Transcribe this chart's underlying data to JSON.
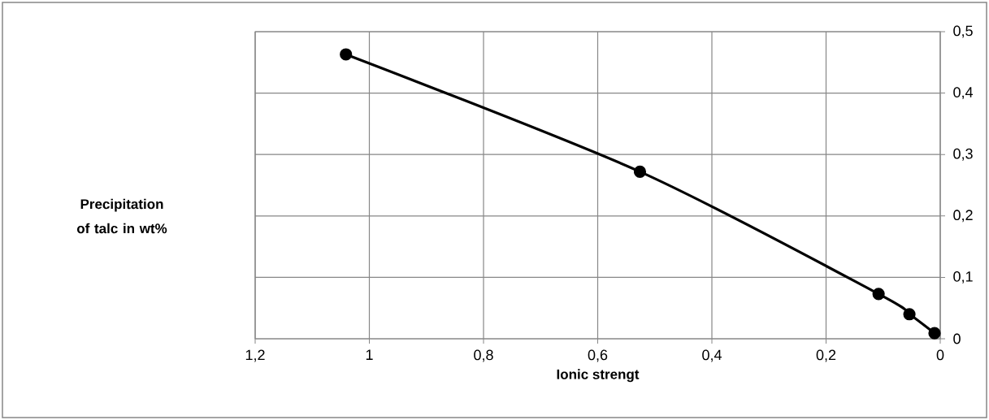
{
  "chart_data": {
    "type": "line",
    "xlabel": "Ionic strengt",
    "annotations": [
      "Precipitation of talc in wt%"
    ],
    "x": [
      1.041,
      0.526,
      0.108,
      0.054,
      0.01
    ],
    "series": [
      {
        "color": "#000000",
        "values": [
          0.463,
          0.272,
          0.073,
          0.04,
          0.009
        ]
      }
    ],
    "xlim": [
      1.2,
      0
    ],
    "xticks": [
      {
        "value": 1.2,
        "label": "1,2"
      },
      1,
      {
        "value": 0.8,
        "label": "0,8"
      },
      {
        "value": 0.6,
        "label": "0,6"
      },
      {
        "value": 0.4,
        "label": "0,4"
      },
      {
        "value": 0.2,
        "label": "0,2"
      },
      0
    ],
    "ylim": [
      0,
      0.5
    ],
    "yticks": [
      0,
      {
        "value": 0.1,
        "label": "0,1"
      },
      {
        "value": 0.2,
        "label": "0,2"
      },
      {
        "value": 0.3,
        "label": "0,3"
      },
      {
        "value": 0.4,
        "label": "0,4"
      },
      {
        "value": 0.5,
        "label": "0,5"
      }
    ],
    "grid": true,
    "marker": "circle",
    "line_style": "solid"
  }
}
